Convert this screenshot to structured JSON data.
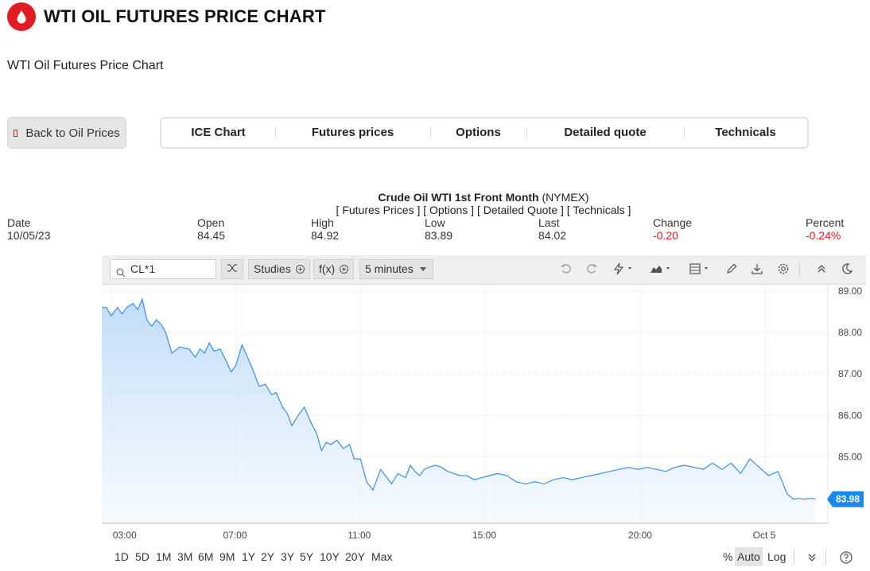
{
  "header": {
    "title": "WTI OIL FUTURES PRICE CHART",
    "logo_icon": "oil-drop-icon"
  },
  "subtitle": "WTI Oil Futures Price Chart",
  "back_button": {
    "label": "Back to Oil Prices",
    "icon": "square-icon"
  },
  "tabs": [
    {
      "label": "ICE Chart"
    },
    {
      "label": "Futures prices"
    },
    {
      "label": "Options"
    },
    {
      "label": "Detailed quote"
    },
    {
      "label": "Technicals"
    }
  ],
  "quote": {
    "name": "Crude Oil WTI 1st Front Month",
    "exchange": "(NYMEX)",
    "links": "[ Futures Prices ] [ Options ] [ Detailed Quote ] [ Technicals ]",
    "fields": [
      {
        "label": "Date",
        "value": "10/05/23",
        "negative": false
      },
      {
        "label": "Open",
        "value": "84.45",
        "negative": false
      },
      {
        "label": "High",
        "value": "84.92",
        "negative": false
      },
      {
        "label": "Low",
        "value": "83.89",
        "negative": false
      },
      {
        "label": "Last",
        "value": "84.02",
        "negative": false
      },
      {
        "label": "Change",
        "value": "-0.20",
        "negative": true
      },
      {
        "label": "Percent",
        "value": "-0.24%",
        "negative": true
      }
    ]
  },
  "toolbar": {
    "symbol": "CL*1",
    "studies_label": "Studies",
    "fx_label": "f(x)",
    "interval_label": "5 minutes",
    "icons": [
      "shuffle-icon",
      "undo-icon",
      "redo-icon",
      "lightning-icon",
      "chart-type-icon",
      "layout-icon",
      "pencil-icon",
      "download-icon",
      "gear-icon",
      "collapse-up-icon",
      "moon-icon"
    ]
  },
  "range_buttons": [
    "1D",
    "5D",
    "1M",
    "3M",
    "6M",
    "9M",
    "1Y",
    "2Y",
    "3Y",
    "5Y",
    "10Y",
    "20Y",
    "Max"
  ],
  "scale_options": {
    "percent": "%",
    "auto": "Auto",
    "log": "Log",
    "active": "Auto"
  },
  "colors": {
    "brand": "#e01b22",
    "line": "#3a8ee6",
    "last_price_bg": "#1e88e5",
    "negative": "#e01b22"
  },
  "chart_data": {
    "type": "area",
    "title": "",
    "xlabel": "",
    "ylabel": "",
    "ylim": [
      83.4,
      89.15
    ],
    "y_ticks": [
      "89.00",
      "88.00",
      "87.00",
      "86.00",
      "85.00"
    ],
    "x_ticks": [
      {
        "label": "03:00",
        "x": 0.3
      },
      {
        "label": "07:00",
        "x": 4.3
      },
      {
        "label": "11:00",
        "x": 8.3
      },
      {
        "label": "15:00",
        "x": 12.3
      },
      {
        "label": "20:00",
        "x": 17.3
      },
      {
        "label": "Oct 5",
        "x": 21.3
      }
    ],
    "last_price": "83.98",
    "grid": true,
    "series": [
      {
        "x": [
          0,
          0.15,
          0.3,
          0.5,
          0.65,
          0.8,
          1.0,
          1.15,
          1.3,
          1.45,
          1.6,
          1.75,
          1.9,
          2.05,
          2.25,
          2.5,
          2.8,
          3.0,
          3.15,
          3.3,
          3.45,
          3.6,
          3.8,
          4.0,
          4.15,
          4.3,
          4.5,
          4.65,
          4.85,
          5.05,
          5.25,
          5.45,
          5.6,
          5.8,
          5.95,
          6.1,
          6.3,
          6.5,
          6.7,
          6.9,
          7.05,
          7.2,
          7.35,
          7.55,
          7.75,
          7.95,
          8.1,
          8.3,
          8.5,
          8.7,
          8.95,
          9.15,
          9.3,
          9.5,
          9.75,
          9.9,
          10.05,
          10.2,
          10.35,
          10.5,
          10.7,
          10.9,
          11.1,
          11.3,
          11.5,
          11.7,
          11.95,
          12.2,
          12.45,
          12.7,
          13.0,
          13.3,
          13.6,
          13.9,
          14.2,
          14.5,
          14.8,
          15.1,
          15.4,
          15.7,
          16.0,
          16.3,
          16.6,
          16.9,
          17.2,
          17.5,
          17.8,
          18.1,
          18.4,
          18.7,
          19.0,
          19.3,
          19.6,
          19.9,
          20.2,
          20.5,
          20.8,
          21.1,
          21.4,
          21.7,
          22.0,
          22.2,
          22.4,
          22.55,
          22.7,
          22.8,
          22.9
        ],
        "values": [
          88.6,
          88.6,
          88.4,
          88.6,
          88.45,
          88.6,
          88.7,
          88.55,
          88.8,
          88.3,
          88.15,
          88.3,
          88.2,
          88.0,
          87.5,
          87.65,
          87.6,
          87.4,
          87.6,
          87.5,
          87.75,
          87.55,
          87.6,
          87.3,
          87.05,
          87.2,
          87.7,
          87.45,
          87.1,
          86.7,
          86.75,
          86.5,
          86.55,
          86.2,
          86.05,
          85.75,
          86.0,
          86.2,
          85.85,
          85.55,
          85.15,
          85.35,
          85.3,
          85.4,
          85.2,
          85.3,
          84.95,
          84.95,
          84.4,
          84.2,
          84.7,
          84.5,
          84.35,
          84.6,
          84.5,
          84.8,
          84.65,
          84.55,
          84.7,
          84.75,
          84.8,
          84.75,
          84.65,
          84.6,
          84.55,
          84.55,
          84.45,
          84.5,
          84.55,
          84.6,
          84.55,
          84.4,
          84.35,
          84.4,
          84.35,
          84.45,
          84.5,
          84.45,
          84.5,
          84.55,
          84.6,
          84.65,
          84.7,
          84.75,
          84.7,
          84.75,
          84.7,
          84.65,
          84.75,
          84.8,
          84.75,
          84.7,
          84.85,
          84.7,
          84.85,
          84.6,
          84.95,
          84.75,
          84.55,
          84.65,
          84.1,
          83.98,
          84.0,
          83.98,
          84.0,
          84.0,
          83.98
        ]
      }
    ]
  }
}
